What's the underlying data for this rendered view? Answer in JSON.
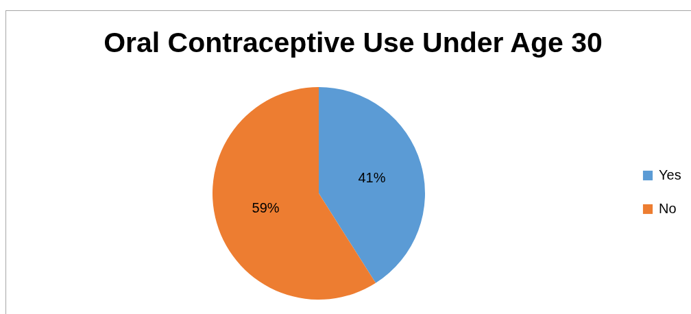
{
  "chart_data": {
    "type": "pie",
    "title": "Oral Contraceptive Use Under Age 30",
    "categories": [
      "Yes",
      "No"
    ],
    "values": [
      41,
      59
    ],
    "colors": [
      "#5b9bd5",
      "#ed7d31"
    ],
    "value_labels": [
      "41%",
      "59%"
    ],
    "legend": "right"
  }
}
